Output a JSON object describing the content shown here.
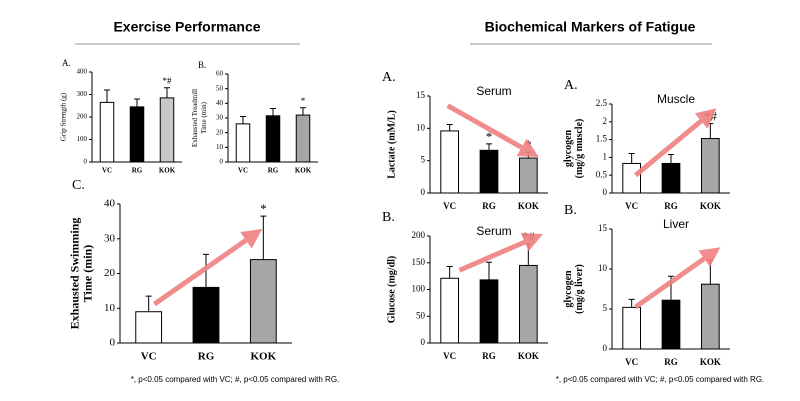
{
  "sections": [
    {
      "title": "Exercise Performance",
      "footnote": "*, p<0.05 compared with VC; #, p<0.05 compared with RG."
    },
    {
      "title": "Biochemical Markers of Fatigue",
      "footnote": "*, p<0.05 compared with VC; #, p<0.05 compared with RG."
    }
  ],
  "chart_data": [
    {
      "type": "bar",
      "panel": "A.",
      "ylabel": [
        "Grip Strength (g)"
      ],
      "categories": [
        "VC",
        "RG",
        "KOK"
      ],
      "values": [
        265,
        245,
        285
      ],
      "errors": [
        55,
        35,
        45
      ],
      "colors": [
        "#ffffff",
        "#000000",
        "#c8c8c8"
      ],
      "ylim": [
        0,
        400
      ],
      "yticks": [
        0,
        100,
        200,
        300,
        400
      ],
      "annotations": [
        {
          "category": "KOK",
          "text": "*#"
        }
      ]
    },
    {
      "type": "bar",
      "panel": "B.",
      "ylabel": [
        "Exhausted Treadmill",
        "Time (min)"
      ],
      "categories": [
        "VC",
        "RG",
        "KOK"
      ],
      "values": [
        26,
        31.5,
        32
      ],
      "errors": [
        5,
        5,
        5
      ],
      "colors": [
        "#ffffff",
        "#000000",
        "#a6a6a6"
      ],
      "ylim": [
        0,
        60
      ],
      "yticks": [
        0,
        10,
        20,
        30,
        40,
        50,
        60
      ],
      "annotations": [
        {
          "category": "KOK",
          "text": "*"
        }
      ]
    },
    {
      "type": "bar",
      "panel": "C.",
      "ylabel": [
        "Exhausted Swimming",
        "Time (min)"
      ],
      "categories": [
        "VC",
        "RG",
        "KOK"
      ],
      "values": [
        9,
        16,
        24
      ],
      "errors": [
        4.5,
        9.5,
        12.5
      ],
      "colors": [
        "#ffffff",
        "#000000",
        "#a6a6a6"
      ],
      "ylim": [
        0,
        40
      ],
      "yticks": [
        0,
        10,
        20,
        30,
        40
      ],
      "annotations": [
        {
          "category": "KOK",
          "text": "*"
        }
      ]
    },
    {
      "type": "bar",
      "panel": "A.",
      "note": "Serum",
      "ylabel": [
        "Lactate (mM/L)"
      ],
      "categories": [
        "VC",
        "RG",
        "KOK"
      ],
      "values": [
        9.6,
        6.6,
        5.4
      ],
      "errors": [
        1,
        1,
        0.9
      ],
      "colors": [
        "#ffffff",
        "#000000",
        "#a6a6a6"
      ],
      "ylim": [
        0,
        15
      ],
      "yticks": [
        0,
        5,
        10,
        15
      ],
      "annotations": [
        {
          "category": "RG",
          "text": "*"
        },
        {
          "category": "KOK",
          "text": "*"
        }
      ]
    },
    {
      "type": "bar",
      "panel": "A.",
      "note": "Muscle",
      "ylabel": [
        "glycogen",
        "(mg/g muscle)"
      ],
      "categories": [
        "VC",
        "RG",
        "KOK"
      ],
      "values": [
        0.83,
        0.83,
        1.53
      ],
      "errors": [
        0.28,
        0.25,
        0.42
      ],
      "colors": [
        "#ffffff",
        "#000000",
        "#a6a6a6"
      ],
      "ylim": [
        0,
        2.5
      ],
      "yticks": [
        0,
        0.5,
        1,
        1.5,
        2,
        2.5
      ],
      "annotations": [
        {
          "category": "KOK",
          "text": "*#"
        }
      ]
    },
    {
      "type": "bar",
      "panel": "B.",
      "note": "Serum",
      "ylabel": [
        "Glucose (mg/dl)"
      ],
      "categories": [
        "VC",
        "RG",
        "KOK"
      ],
      "values": [
        121,
        118,
        145
      ],
      "errors": [
        22,
        33,
        40
      ],
      "colors": [
        "#ffffff",
        "#000000",
        "#a6a6a6"
      ],
      "ylim": [
        0,
        200
      ],
      "yticks": [
        0,
        50,
        100,
        150,
        200
      ],
      "annotations": [
        {
          "category": "KOK",
          "text": "*#"
        }
      ]
    },
    {
      "type": "bar",
      "panel": "B.",
      "note": "Liver",
      "ylabel": [
        "glycogen",
        "(mg/g liver)"
      ],
      "categories": [
        "VC",
        "RG",
        "KOK"
      ],
      "values": [
        5.2,
        6.1,
        8.1
      ],
      "errors": [
        1,
        3,
        3
      ],
      "colors": [
        "#ffffff",
        "#000000",
        "#a6a6a6"
      ],
      "ylim": [
        0,
        15
      ],
      "yticks": [
        0,
        5,
        10,
        15
      ]
    }
  ]
}
